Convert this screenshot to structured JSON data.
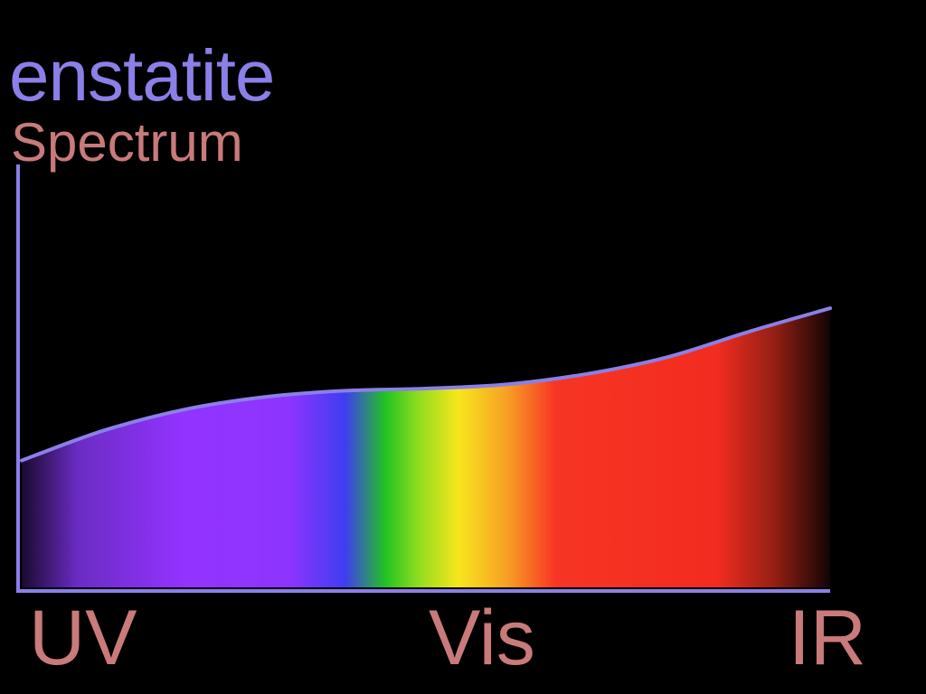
{
  "colors": {
    "title": "#8b7fe8",
    "subtitle": "#c97a7a",
    "axis": "#8b7fe8",
    "labels": "#c97a7a",
    "curve": "#8b7fe8"
  },
  "chart_data": {
    "type": "area",
    "title": "enstatite",
    "subtitle": "Spectrum",
    "xlabel": "",
    "ylabel": "",
    "x_tick_labels": [
      "UV",
      "Vis",
      "IR"
    ],
    "x_range": [
      0,
      100
    ],
    "y_range": [
      0,
      100
    ],
    "grid": false,
    "legend": "none",
    "series": [
      {
        "name": "enstatite",
        "x": [
          0,
          10,
          20,
          30,
          40,
          50,
          60,
          70,
          80,
          90,
          100
        ],
        "y": [
          30,
          37,
          42,
          45,
          46.5,
          47,
          48,
          50.5,
          54.5,
          60.5,
          66
        ]
      }
    ],
    "spectrum_gradient": [
      {
        "pos": 0.0,
        "color": "#1a0a30"
      },
      {
        "pos": 0.07,
        "color": "#6b2cc4"
      },
      {
        "pos": 0.2,
        "color": "#9333ff"
      },
      {
        "pos": 0.33,
        "color": "#8e34ff"
      },
      {
        "pos": 0.4,
        "color": "#3f3df0"
      },
      {
        "pos": 0.45,
        "color": "#22c322"
      },
      {
        "pos": 0.49,
        "color": "#8fdc1f"
      },
      {
        "pos": 0.54,
        "color": "#f7e61e"
      },
      {
        "pos": 0.6,
        "color": "#f7a024"
      },
      {
        "pos": 0.66,
        "color": "#f73524"
      },
      {
        "pos": 0.86,
        "color": "#f22c20"
      },
      {
        "pos": 0.93,
        "color": "#962014"
      },
      {
        "pos": 1.0,
        "color": "#120404"
      }
    ]
  }
}
